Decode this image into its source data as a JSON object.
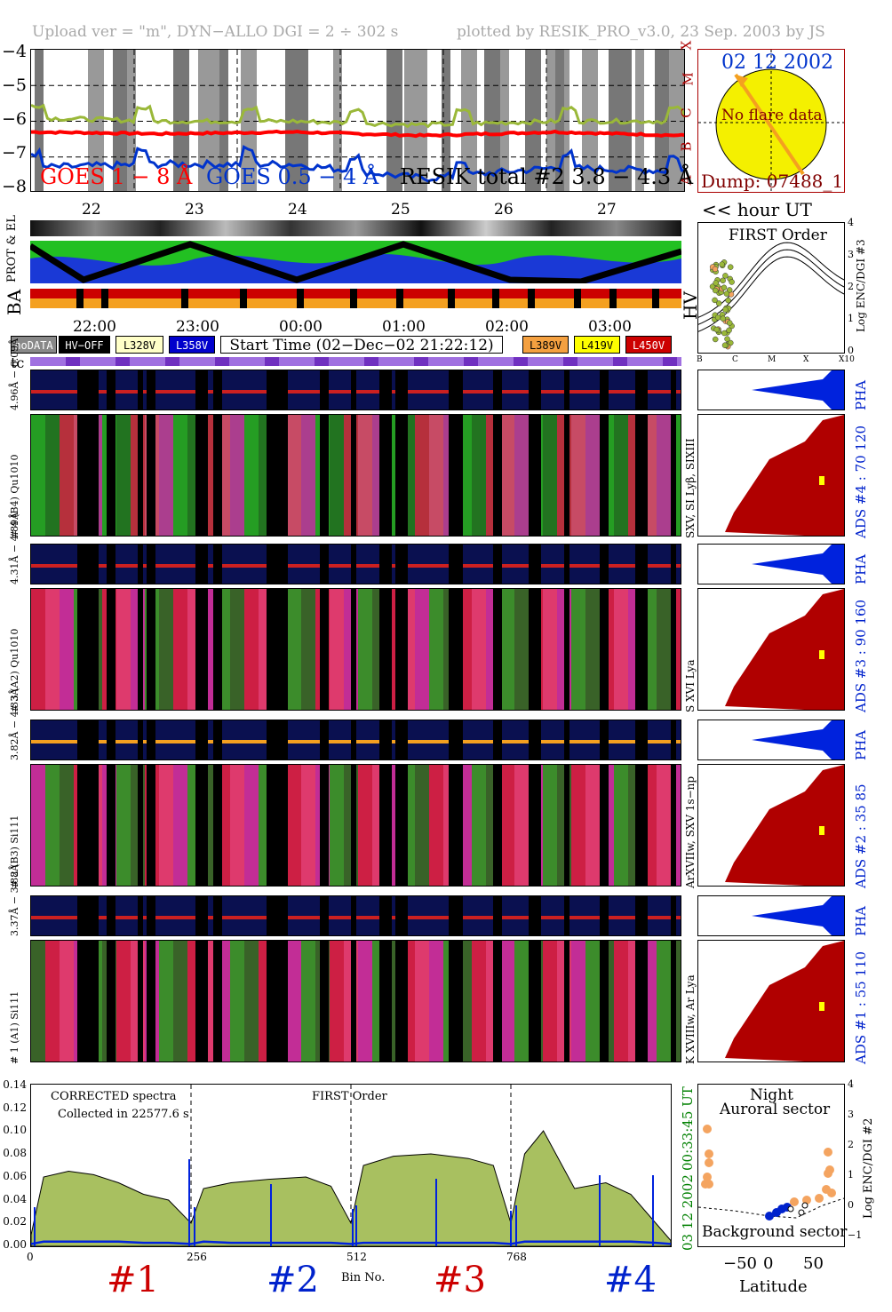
{
  "header": {
    "left": "Upload ver = \"m\", DYN−ALLO DGI =   2 ÷ 302 s",
    "right": "plotted by RESIK_PRO_v3.0, 23 Sep. 2003 by JS"
  },
  "goes": {
    "yticks": [
      "−4",
      "−5",
      "−6",
      "−7",
      "−8"
    ],
    "class_letters": [
      "X",
      "M",
      "C",
      "B",
      "A"
    ],
    "legend_goes18": "GOES 1 − 8 Å",
    "legend_goes054": "GOES 0.5 − 4 Å",
    "legend_resik": "RESIK total #2  3.8 − 4.3 Å",
    "colors": {
      "goes18": "#ff0000",
      "goes054": "#0033cc",
      "resik": "#9ab839",
      "resik_hot": "#f4a460"
    },
    "day_labels": [
      "22",
      "23",
      "24",
      "25",
      "26",
      "27"
    ]
  },
  "sun_panel": {
    "date": "02 12 2002",
    "flare": "No flare data",
    "dump": "Dump: 07488_1",
    "hour_label": "<< hour UT"
  },
  "status_panel": {
    "prot_el": "PROT & EL",
    "ba": "BA",
    "hv": "HV"
  },
  "order_panel": {
    "title": "FIRST Order",
    "ylabel": "Log ENC/DGI #3",
    "yticks": [
      "4",
      "3",
      "2",
      "1",
      "0"
    ],
    "xticks": [
      "B",
      "C",
      "M",
      "X",
      "X10"
    ]
  },
  "time_axis": {
    "labels": [
      "22:00",
      "23:00",
      "00:00",
      "01:00",
      "02:00",
      "03:00"
    ]
  },
  "legend": {
    "nodata": "noDATA",
    "hvoff": "HV−OFF",
    "l328": "L328V",
    "l358": "L358V",
    "start": "Start Time (02−Dec−02 21:22:12)",
    "l389": "L389V",
    "l419": "L419V",
    "l450": "L450V",
    "tc": "tc"
  },
  "spectra_rows": [
    {
      "pha_label": "PHA",
      "ads": "ADS #4 :   70 120",
      "left_pha": "4.96Å − 6.09Å",
      "left_main": "# 4 (B4) Qu1010",
      "right_main": "SXV, SI Lyβ, SIXIII"
    },
    {
      "pha_label": "PHA",
      "ads": "ADS #3 :   90 160",
      "left_pha": "4.31Å − 4.89Å",
      "left_main": "# 3 (A2) Qu1010",
      "right_main": "S XVI Lya"
    },
    {
      "pha_label": "PHA",
      "ads": "ADS #2 :   35  85",
      "left_pha": "3.82Å − 4.33Å",
      "left_main": "# 2 (B3) Si111",
      "right_main": "ArXVIIw, SXV 1s−np"
    },
    {
      "pha_label": "PHA",
      "ads": "ADS #1 :   55 110",
      "left_pha": "3.37Å − 3.88Å",
      "left_main": "# 1 (A1) Si111",
      "right_main": "K XVIIIw, Ar Lya"
    }
  ],
  "spectrum": {
    "title1": "CORRECTED spectra",
    "title2": "Collected in 22577.6 s",
    "title_order": "FIRST Order",
    "xlabel": "Bin No.",
    "xticks": [
      "0",
      "256",
      "512",
      "768"
    ],
    "yticks": [
      "0.14",
      "0.12",
      "0.10",
      "0.08",
      "0.06",
      "0.04",
      "0.02",
      "0.00"
    ],
    "side_top": "00:33:45 UT",
    "side_bottom": "03 12 2002",
    "channel_labels": [
      "#1",
      "#2",
      "#3",
      "#4"
    ],
    "channel_colors": [
      "#cc0000",
      "#0022cc",
      "#cc0000",
      "#0022cc"
    ]
  },
  "latitude_panel": {
    "night": "Night",
    "auroral": "Auroral sector",
    "background": "Background sector",
    "xlabel": "Latitude",
    "xticks": [
      "−50",
      "0",
      "50"
    ],
    "yticks": [
      "4",
      "3",
      "2",
      "1",
      "0",
      "−1"
    ],
    "ylabel": "Log ENC/DGI #2"
  },
  "chart_data": [
    {
      "type": "line",
      "title": "",
      "ylabel": "",
      "y_scale": "log flux (W/m²)",
      "ylim": [
        -8,
        -4
      ],
      "x": [
        "22",
        "23",
        "24",
        "25",
        "26",
        "27"
      ],
      "series": [
        {
          "name": "GOES 1 − 8 Å",
          "values": [
            -6.3,
            -6.35,
            -6.3,
            -6.4,
            -6.3,
            -6.4
          ]
        },
        {
          "name": "GOES 0.5 − 4 Å",
          "values": [
            -7.3,
            -7.2,
            -7.2,
            -7.6,
            -7.3,
            -7.4
          ]
        },
        {
          "name": "RESIK total #2  3.8 − 4.3 Å",
          "values": [
            -5.9,
            -6.0,
            -6.0,
            -6.1,
            -6.0,
            -6.0
          ]
        }
      ]
    },
    {
      "type": "area",
      "title": "",
      "xlabel": "Bin No.",
      "ylabel": "",
      "xlim": [
        0,
        1024
      ],
      "ylim": [
        0,
        0.14
      ],
      "x": [
        0,
        20,
        60,
        100,
        140,
        180,
        220,
        256,
        276,
        320,
        380,
        440,
        480,
        512,
        532,
        580,
        640,
        700,
        740,
        768,
        790,
        820,
        870,
        920,
        960,
        1000,
        1024
      ],
      "series": [
        {
          "name": "",
          "values": [
            0.01,
            0.06,
            0.065,
            0.062,
            0.055,
            0.045,
            0.04,
            0.02,
            0.05,
            0.055,
            0.058,
            0.06,
            0.052,
            0.02,
            0.07,
            0.078,
            0.08,
            0.076,
            0.07,
            0.02,
            0.08,
            0.1,
            0.05,
            0.055,
            0.045,
            0.02,
            0.005
          ]
        },
        {
          "name": "",
          "values": [
            0.002,
            0.004,
            0.004,
            0.004,
            0.004,
            0.003,
            0.003,
            0.002,
            0.004,
            0.003,
            0.003,
            0.003,
            0.003,
            0.002,
            0.003,
            0.003,
            0.003,
            0.003,
            0.003,
            0.002,
            0.004,
            0.004,
            0.004,
            0.004,
            0.004,
            0.003,
            0.002
          ]
        }
      ]
    }
  ]
}
